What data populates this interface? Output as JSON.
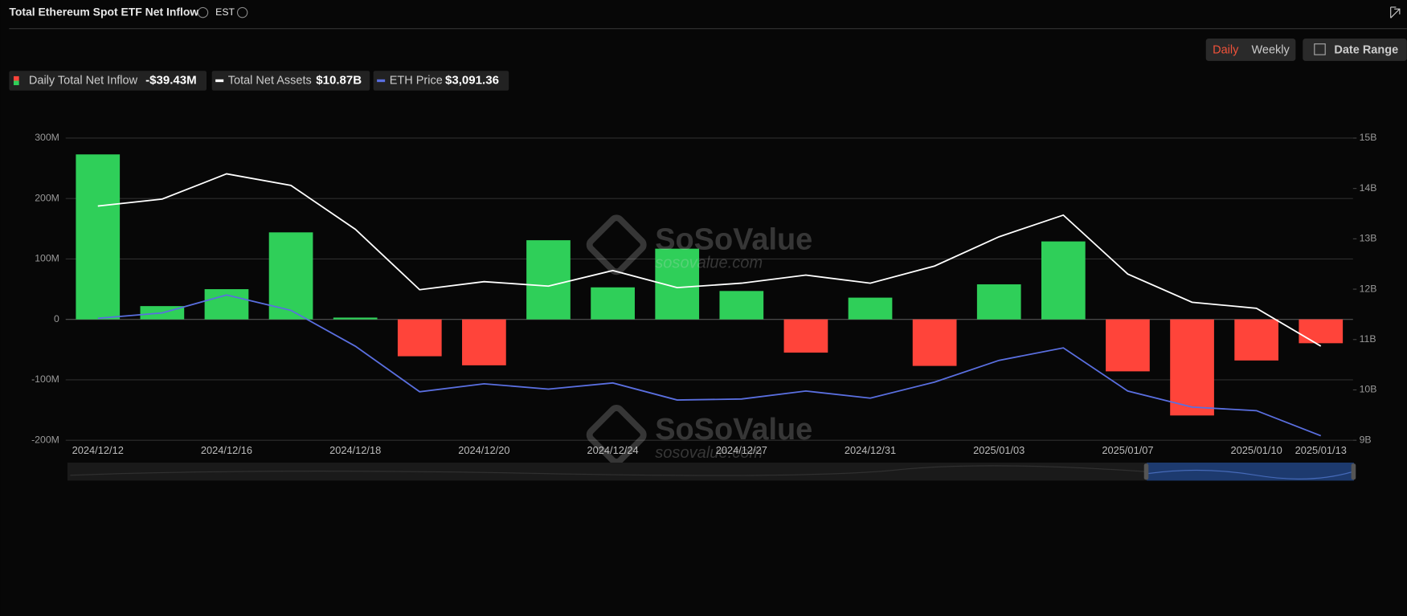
{
  "header": {
    "title": "Total Ethereum Spot ETF Net Inflow",
    "timezone": "EST",
    "buttons": [
      "Daily",
      "Weekly"
    ],
    "date_range": "Date Range"
  },
  "watermark": {
    "brand": "SoSoValue",
    "site": "sosovalue.com"
  },
  "chart_data": {
    "type": "bar",
    "categories": [
      "2024/12/12",
      null,
      "2024/12/16",
      null,
      "2024/12/18",
      null,
      "2024/12/20",
      null,
      "2024/12/24",
      null,
      "2024/12/27",
      null,
      "2024/12/31",
      null,
      "2025/01/03",
      null,
      "2025/01/07",
      null,
      "2025/01/10",
      "2025/01/13"
    ],
    "series": [
      {
        "name": "Daily Total Net Inflow",
        "legend_value": "-$39.43M",
        "type": "bar",
        "color": "#2fcf59",
        "negative_color": "#ff443a",
        "values": [
          273,
          22,
          50,
          144,
          3,
          -61,
          -76,
          131,
          53,
          117,
          47,
          -55,
          36,
          -77,
          58,
          129,
          -86,
          -159,
          -68,
          -39.43
        ]
      },
      {
        "name": "Total Net Assets",
        "legend_value": "$10.87B",
        "type": "line",
        "axis": "y2",
        "color": "#ffffff",
        "values": [
          13.65,
          13.79,
          14.29,
          14.06,
          13.19,
          11.99,
          12.15,
          12.06,
          12.37,
          12.03,
          12.12,
          12.28,
          12.12,
          12.46,
          13.04,
          13.47,
          12.3,
          11.74,
          11.62,
          10.87
        ]
      },
      {
        "name": "ETH Price",
        "legend_value": "$3,091.36",
        "type": "line",
        "axis": "y3",
        "color": "#5a6fe0",
        "values": [
          3851,
          3886,
          4002,
          3903,
          3671,
          3376,
          3428,
          3393,
          3433,
          3323,
          3329,
          3381,
          3335,
          3439,
          3579,
          3660,
          3381,
          3277,
          3254,
          3091.36
        ]
      }
    ],
    "ylim": [
      -200,
      300
    ],
    "yticks": [
      {
        "value": -200,
        "label": "-200M"
      },
      {
        "value": -100,
        "label": "-100M"
      },
      0,
      {
        "value": 100,
        "label": "100M"
      },
      {
        "value": 200,
        "label": "200M"
      },
      {
        "value": 300,
        "label": "300M"
      }
    ],
    "y2lim": [
      9,
      15
    ],
    "y2ticks": [
      {
        "value": 9,
        "label": "9B"
      },
      {
        "value": 10,
        "label": "10B"
      },
      {
        "value": 11,
        "label": "11B"
      },
      {
        "value": 12,
        "label": "12B"
      },
      {
        "value": 13,
        "label": "13B"
      },
      {
        "value": 14,
        "label": "14B"
      },
      {
        "value": 15,
        "label": "15B"
      }
    ],
    "grid": true
  }
}
